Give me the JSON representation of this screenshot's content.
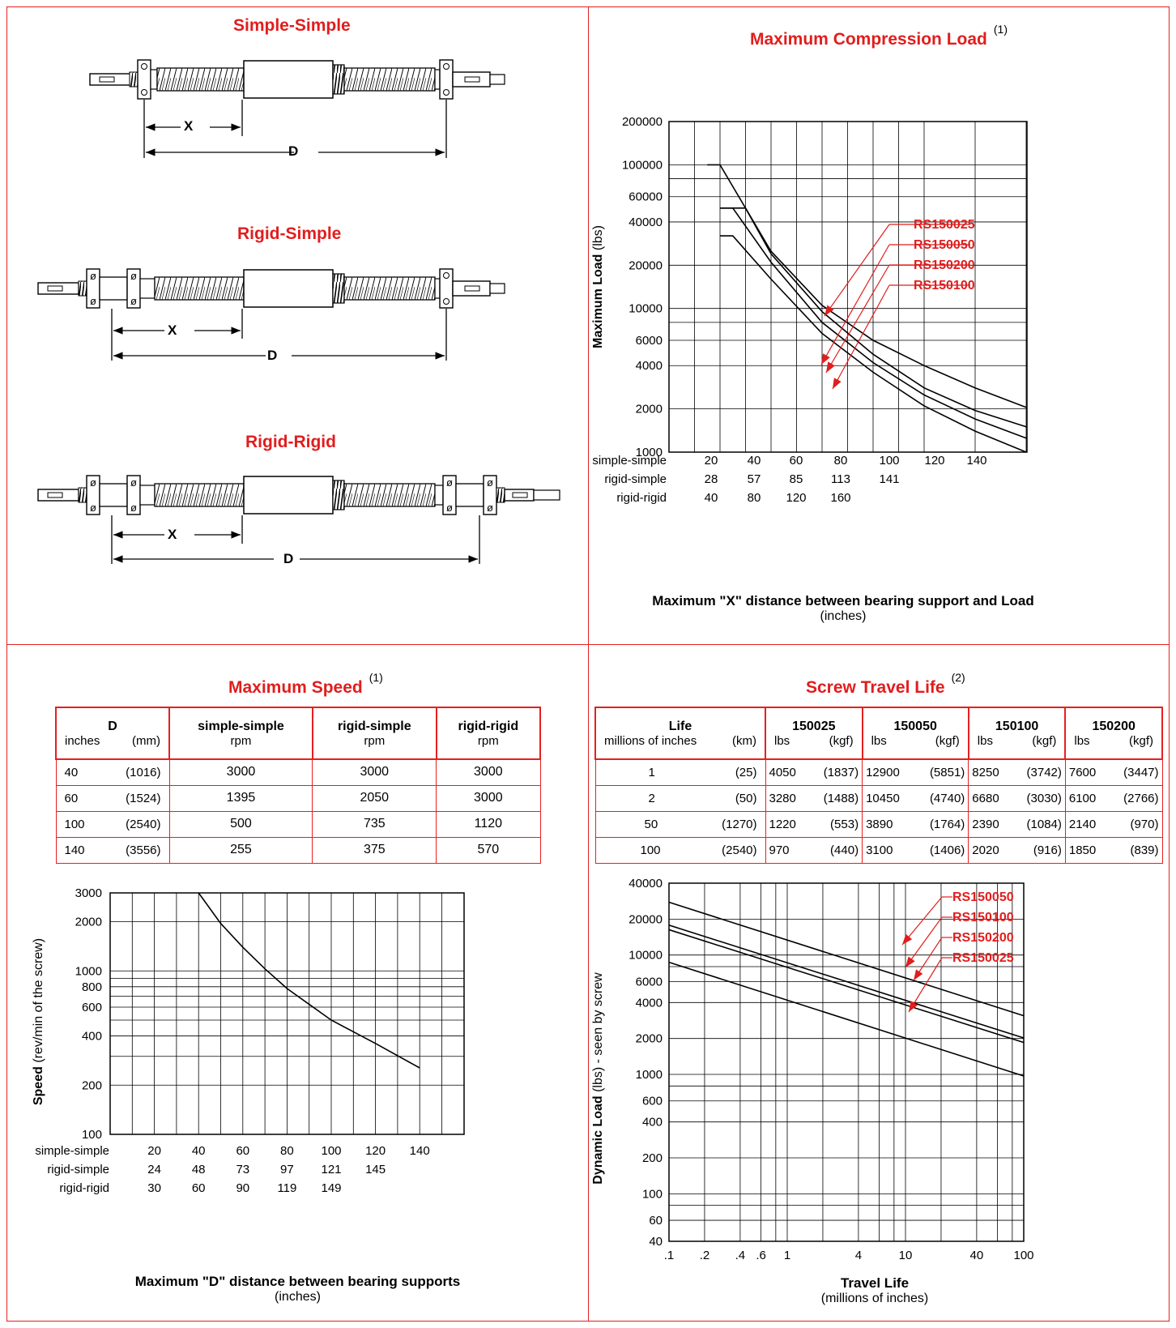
{
  "diagrams": {
    "simple_simple": {
      "title": "Simple-Simple",
      "x_label": "X",
      "d_label": "D"
    },
    "rigid_simple": {
      "title": "Rigid-Simple",
      "x_label": "X",
      "d_label": "D"
    },
    "rigid_rigid": {
      "title": "Rigid-Rigid",
      "x_label": "X",
      "d_label": "D"
    }
  },
  "compression": {
    "title": "Maximum Compression Load",
    "note": "(1)",
    "ylabel_bold": "Maximum Load",
    "ylabel_unit": "(lbs)",
    "xlabel_bold": "Maximum \"X\" distance between bearing support and Load",
    "xlabel_unit": "(inches)",
    "yticks": [
      1000,
      2000,
      4000,
      6000,
      10000,
      20000,
      40000,
      60000,
      100000,
      200000
    ],
    "xrows": [
      {
        "name": "simple-simple",
        "values": [
          "20",
          "40",
          "60",
          "80",
          "100",
          "120",
          "140"
        ]
      },
      {
        "name": "rigid-simple",
        "values": [
          "28",
          "57",
          "85",
          "113",
          "141",
          "",
          ""
        ]
      },
      {
        "name": "rigid-rigid",
        "values": [
          "40",
          "80",
          "120",
          "160",
          "",
          "",
          ""
        ]
      }
    ],
    "series_labels": [
      "RS150025",
      "RS150050",
      "RS150200",
      "RS150100"
    ]
  },
  "speed": {
    "title": "Maximum Speed",
    "note": "(1)",
    "table": {
      "col_d": "D",
      "col_d_units": [
        "inches",
        "(mm)"
      ],
      "cols": [
        "simple-simple",
        "rigid-simple",
        "rigid-rigid"
      ],
      "col_unit": "rpm",
      "rows": [
        [
          "40",
          "(1016)",
          "3000",
          "3000",
          "3000"
        ],
        [
          "60",
          "(1524)",
          "1395",
          "2050",
          "3000"
        ],
        [
          "100",
          "(2540)",
          "500",
          "735",
          "1120"
        ],
        [
          "140",
          "(3556)",
          "255",
          "375",
          "570"
        ]
      ]
    },
    "ylabel_bold": "Speed",
    "ylabel_unit": "(rev/min of the screw)",
    "xlabel_bold": "Maximum \"D\" distance between bearing supports",
    "xlabel_unit": "(inches)",
    "yticks": [
      100,
      200,
      400,
      600,
      800,
      1000,
      2000,
      3000
    ],
    "xrows": [
      {
        "name": "simple-simple",
        "values": [
          "20",
          "40",
          "60",
          "80",
          "100",
          "120",
          "140"
        ]
      },
      {
        "name": "rigid-simple",
        "values": [
          "24",
          "48",
          "73",
          "97",
          "121",
          "145",
          ""
        ]
      },
      {
        "name": "rigid-rigid",
        "values": [
          "30",
          "60",
          "90",
          "119",
          "149",
          "",
          ""
        ]
      }
    ]
  },
  "life": {
    "title": "Screw Travel Life",
    "note": "(2)",
    "table": {
      "col_life": "Life",
      "col_life_units": [
        "millions of inches",
        "(km)"
      ],
      "models": [
        "150025",
        "150050",
        "150100",
        "150200"
      ],
      "units": [
        "lbs",
        "(kgf)"
      ],
      "rows": [
        [
          "1",
          "(25)",
          "4050",
          "(1837)",
          "12900",
          "(5851)",
          "8250",
          "(3742)",
          "7600",
          "(3447)"
        ],
        [
          "2",
          "(50)",
          "3280",
          "(1488)",
          "10450",
          "(4740)",
          "6680",
          "(3030)",
          "6100",
          "(2766)"
        ],
        [
          "50",
          "(1270)",
          "1220",
          "(553)",
          "3890",
          "(1764)",
          "2390",
          "(1084)",
          "2140",
          "(970)"
        ],
        [
          "100",
          "(2540)",
          "970",
          "(440)",
          "3100",
          "(1406)",
          "2020",
          "(916)",
          "1850",
          "(839)"
        ]
      ]
    },
    "ylabel_bold": "Dynamic Load",
    "ylabel_unit": "(lbs)  - seen by screw",
    "xlabel_bold": "Travel Life",
    "xlabel_unit": "(millions of inches)",
    "yticks": [
      40,
      60,
      100,
      200,
      400,
      600,
      1000,
      2000,
      4000,
      6000,
      10000,
      20000,
      40000
    ],
    "xticks": [
      ".1",
      ".2",
      ".4",
      ".6",
      "1",
      "4",
      "10",
      "40",
      "100"
    ],
    "series_labels": [
      "RS150050",
      "RS150100",
      "RS150200",
      "RS150025"
    ]
  },
  "chart_data": [
    {
      "type": "line",
      "title": "Maximum Compression Load",
      "xlabel": "Maximum \"X\" distance between bearing support and Load",
      "ylabel": "Maximum Load (lbs)",
      "yscale": "log",
      "ylim": [
        1000,
        200000
      ],
      "xlim": [
        0,
        140
      ],
      "x_axis": "simple-simple (inches)",
      "series": [
        {
          "name": "RS150025",
          "x": [
            20,
            30,
            40,
            60,
            80,
            100,
            120,
            140
          ],
          "y": [
            50000,
            50000,
            25000,
            10500,
            6000,
            4000,
            2800,
            2050
          ]
        },
        {
          "name": "RS150050",
          "x": [
            15,
            20,
            30,
            40,
            60,
            80,
            100,
            120,
            140
          ],
          "y": [
            100000,
            100000,
            50000,
            24000,
            9500,
            4800,
            2800,
            1950,
            1500
          ]
        },
        {
          "name": "RS150200",
          "x": [
            20,
            25,
            40,
            60,
            80,
            100,
            120,
            140
          ],
          "y": [
            50000,
            50000,
            21000,
            8000,
            4200,
            2500,
            1700,
            1250
          ]
        },
        {
          "name": "RS150100",
          "x": [
            20,
            25,
            40,
            60,
            80,
            100,
            120,
            140
          ],
          "y": [
            32000,
            32000,
            16000,
            6700,
            3600,
            2100,
            1400,
            1000
          ]
        }
      ]
    },
    {
      "type": "table",
      "title": "Maximum Speed",
      "columns": [
        "D inches",
        "D (mm)",
        "simple-simple rpm",
        "rigid-simple rpm",
        "rigid-rigid rpm"
      ],
      "rows": [
        [
          40,
          1016,
          3000,
          3000,
          3000
        ],
        [
          60,
          1524,
          1395,
          2050,
          3000
        ],
        [
          100,
          2540,
          500,
          735,
          1120
        ],
        [
          140,
          3556,
          255,
          375,
          570
        ]
      ]
    },
    {
      "type": "line",
      "title": "Maximum Speed",
      "xlabel": "Maximum \"D\" distance between bearing supports",
      "ylabel": "Speed (rev/min of the screw)",
      "yscale": "log",
      "ylim": [
        100,
        3000
      ],
      "xlim": [
        0,
        160
      ],
      "x_axis": "simple-simple (inches)",
      "series": [
        {
          "x": [
            40,
            50,
            60,
            70,
            80,
            100,
            120,
            140
          ],
          "y": [
            3000,
            1950,
            1395,
            1030,
            780,
            500,
            360,
            255
          ]
        }
      ]
    },
    {
      "type": "table",
      "title": "Screw Travel Life",
      "columns": [
        "Life millions of inches",
        "(km)",
        "150025 lbs",
        "150025 (kgf)",
        "150050 lbs",
        "150050 (kgf)",
        "150100 lbs",
        "150100 (kgf)",
        "150200 lbs",
        "150200 (kgf)"
      ],
      "rows": [
        [
          1,
          25,
          4050,
          1837,
          12900,
          5851,
          8250,
          3742,
          7600,
          3447
        ],
        [
          2,
          50,
          3280,
          1488,
          10450,
          4740,
          6680,
          3030,
          6100,
          2766
        ],
        [
          50,
          1270,
          1220,
          553,
          3890,
          1764,
          2390,
          1084,
          2140,
          970
        ],
        [
          100,
          2540,
          970,
          440,
          3100,
          1406,
          2020,
          916,
          1850,
          839
        ]
      ]
    },
    {
      "type": "line",
      "title": "Screw Travel Life",
      "xlabel": "Travel Life (millions of inches)",
      "ylabel": "Dynamic Load (lbs) - seen by screw",
      "xscale": "log",
      "yscale": "log",
      "xlim": [
        0.1,
        100
      ],
      "ylim": [
        40,
        40000
      ],
      "series": [
        {
          "name": "RS150050",
          "x": [
            0.1,
            100
          ],
          "y": [
            27700,
            3100
          ]
        },
        {
          "name": "RS150100",
          "x": [
            0.1,
            100
          ],
          "y": [
            17800,
            2020
          ]
        },
        {
          "name": "RS150200",
          "x": [
            0.1,
            100
          ],
          "y": [
            16300,
            1850
          ]
        },
        {
          "name": "RS150025",
          "x": [
            0.1,
            100
          ],
          "y": [
            8700,
            970
          ]
        }
      ]
    }
  ]
}
